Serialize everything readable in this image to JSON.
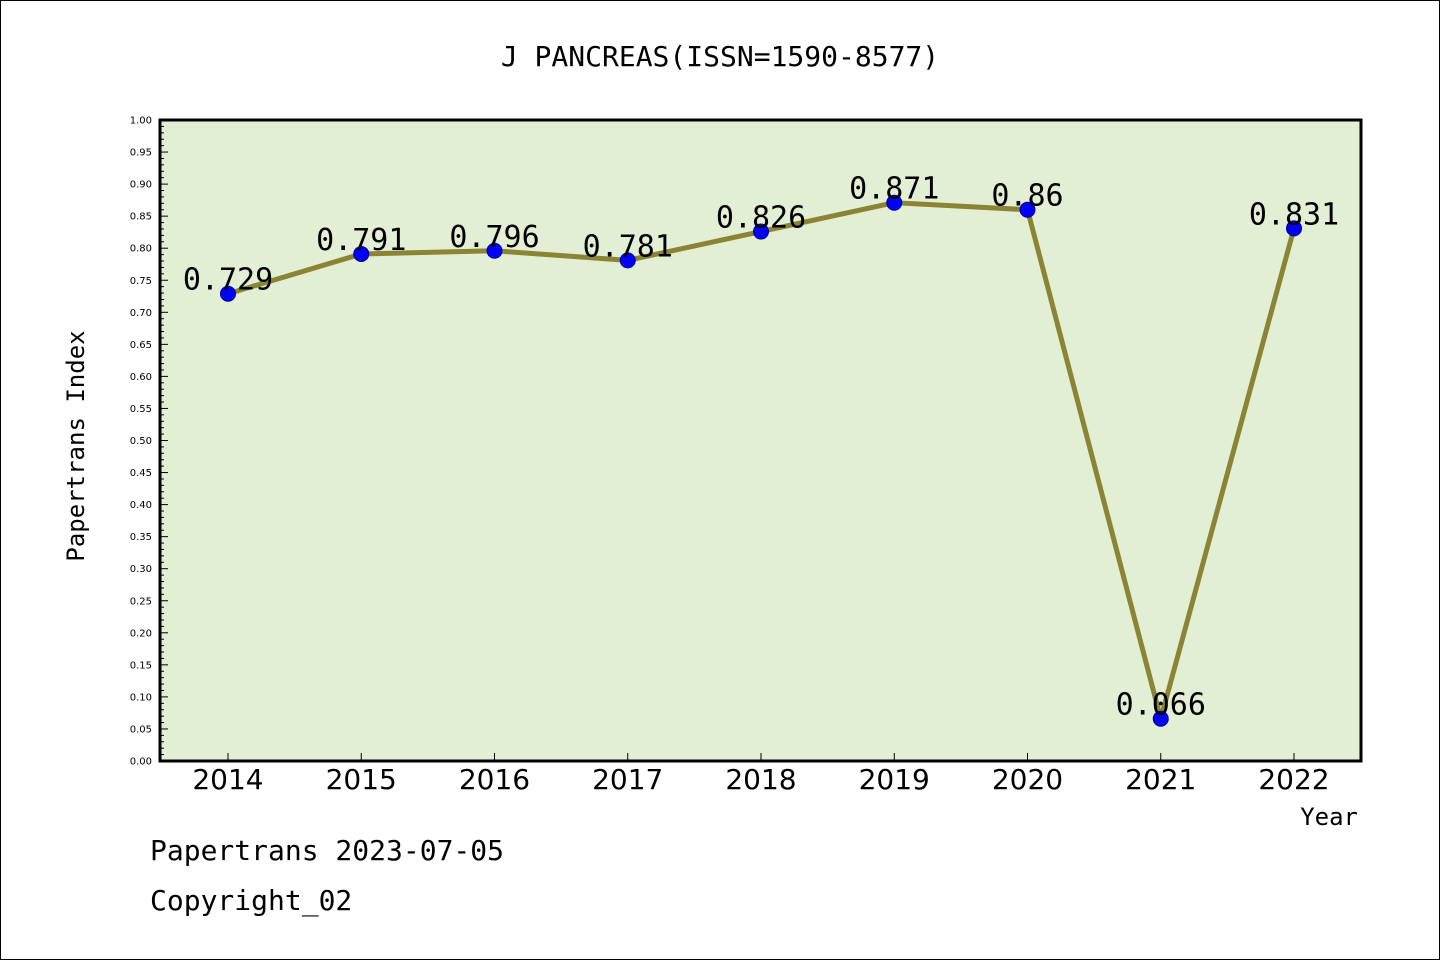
{
  "chart_data": {
    "type": "line",
    "title": "J PANCREAS(ISSN=1590-8577)",
    "xlabel": "Year",
    "ylabel": "Papertrans Index",
    "categories": [
      "2014",
      "2015",
      "2016",
      "2017",
      "2018",
      "2019",
      "2020",
      "2021",
      "2022"
    ],
    "series": [
      {
        "values": [
          0.729,
          0.791,
          0.796,
          0.781,
          0.826,
          0.871,
          0.86,
          0.066,
          0.831
        ],
        "labels": [
          "0.729",
          "0.791",
          "0.796",
          "0.781",
          "0.826",
          "0.871",
          "0.86",
          "0.066",
          "0.831"
        ]
      }
    ],
    "ylim": [
      0,
      1.0
    ],
    "yticks": [
      "0.00",
      "0.05",
      "0.10",
      "0.15",
      "0.20",
      "0.25",
      "0.30",
      "0.35",
      "0.40",
      "0.45",
      "0.50",
      "0.55",
      "0.60",
      "0.65",
      "0.70",
      "0.75",
      "0.80",
      "0.85",
      "0.90",
      "0.95",
      "1.00"
    ],
    "grid": false,
    "colors": {
      "plot_background": "#e2efd4",
      "line": "#8b8434",
      "marker": "#0000ff"
    }
  },
  "footer": {
    "date_line": "Papertrans 2023-07-05",
    "copyright": "Copyright_02"
  }
}
